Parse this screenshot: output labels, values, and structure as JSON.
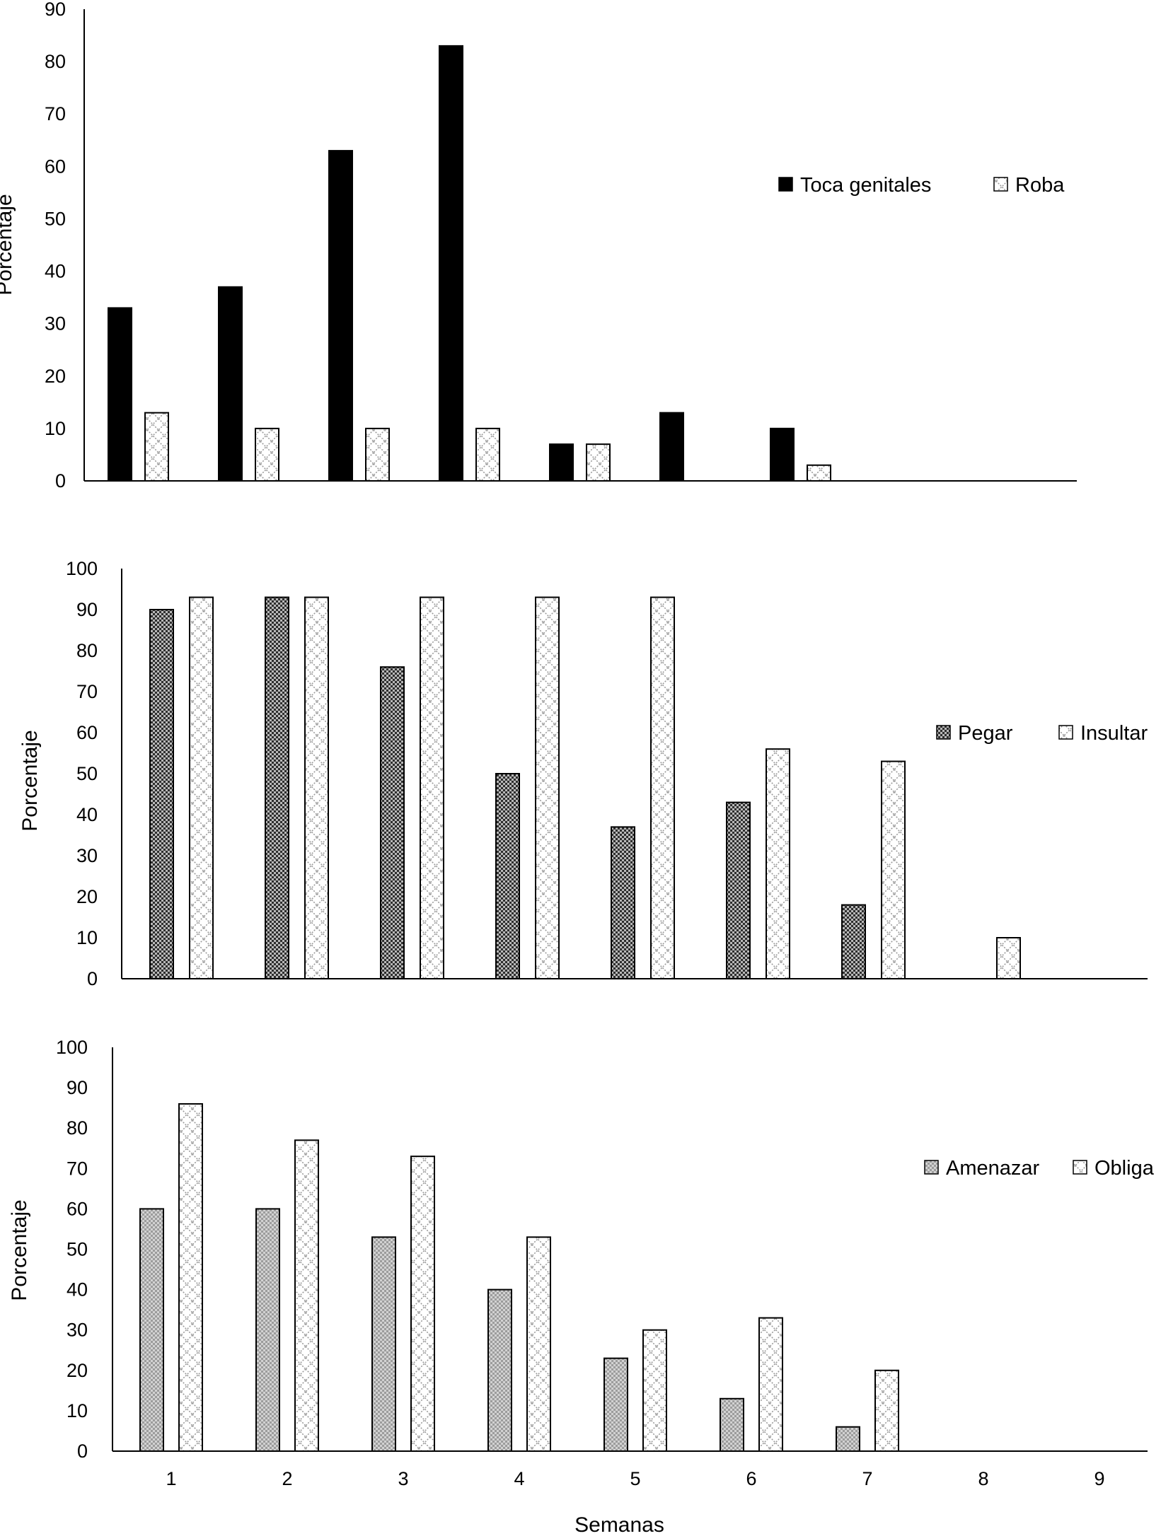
{
  "chart_data": [
    {
      "type": "bar",
      "title": "",
      "xlabel": "",
      "ylabel": "Porcentaje",
      "ylim": [
        0,
        90
      ],
      "yticks": [
        0,
        10,
        20,
        30,
        40,
        50,
        60,
        70,
        80,
        90
      ],
      "categories": [
        "1",
        "2",
        "3",
        "4",
        "5",
        "6",
        "7",
        "8",
        "9"
      ],
      "show_category_labels": false,
      "legend_position": "right",
      "series": [
        {
          "name": "Toca genitales",
          "pattern": "solid",
          "values": [
            33,
            37,
            63,
            83,
            7,
            13,
            10,
            0,
            0
          ]
        },
        {
          "name": "Roba",
          "pattern": "cross-light",
          "values": [
            13,
            10,
            10,
            10,
            7,
            0,
            3,
            0,
            0
          ]
        }
      ]
    },
    {
      "type": "bar",
      "title": "",
      "xlabel": "",
      "ylabel": "Porcentaje",
      "ylim": [
        0,
        100
      ],
      "yticks": [
        0,
        10,
        20,
        30,
        40,
        50,
        60,
        70,
        80,
        90,
        100
      ],
      "categories": [
        "1",
        "2",
        "3",
        "4",
        "5",
        "6",
        "7",
        "8",
        "9"
      ],
      "show_category_labels": false,
      "legend_position": "right",
      "series": [
        {
          "name": "Pegar",
          "pattern": "dense-check",
          "values": [
            90,
            93,
            76,
            50,
            37,
            43,
            18,
            0,
            0
          ]
        },
        {
          "name": "Insultar",
          "pattern": "cross-light",
          "values": [
            93,
            93,
            93,
            93,
            93,
            56,
            53,
            10,
            0
          ]
        }
      ]
    },
    {
      "type": "bar",
      "title": "",
      "xlabel": "Semanas",
      "ylabel": "Porcentaje",
      "ylim": [
        0,
        100
      ],
      "yticks": [
        0,
        10,
        20,
        30,
        40,
        50,
        60,
        70,
        80,
        90,
        100
      ],
      "categories": [
        "1",
        "2",
        "3",
        "4",
        "5",
        "6",
        "7",
        "8",
        "9"
      ],
      "show_category_labels": true,
      "legend_position": "right",
      "series": [
        {
          "name": "Amenazar",
          "pattern": "fine-grey",
          "values": [
            60,
            60,
            53,
            40,
            23,
            13,
            6,
            0,
            0
          ]
        },
        {
          "name": "Obliga",
          "pattern": "cross-light",
          "values": [
            86,
            77,
            73,
            53,
            30,
            33,
            20,
            0,
            0
          ]
        }
      ]
    }
  ]
}
